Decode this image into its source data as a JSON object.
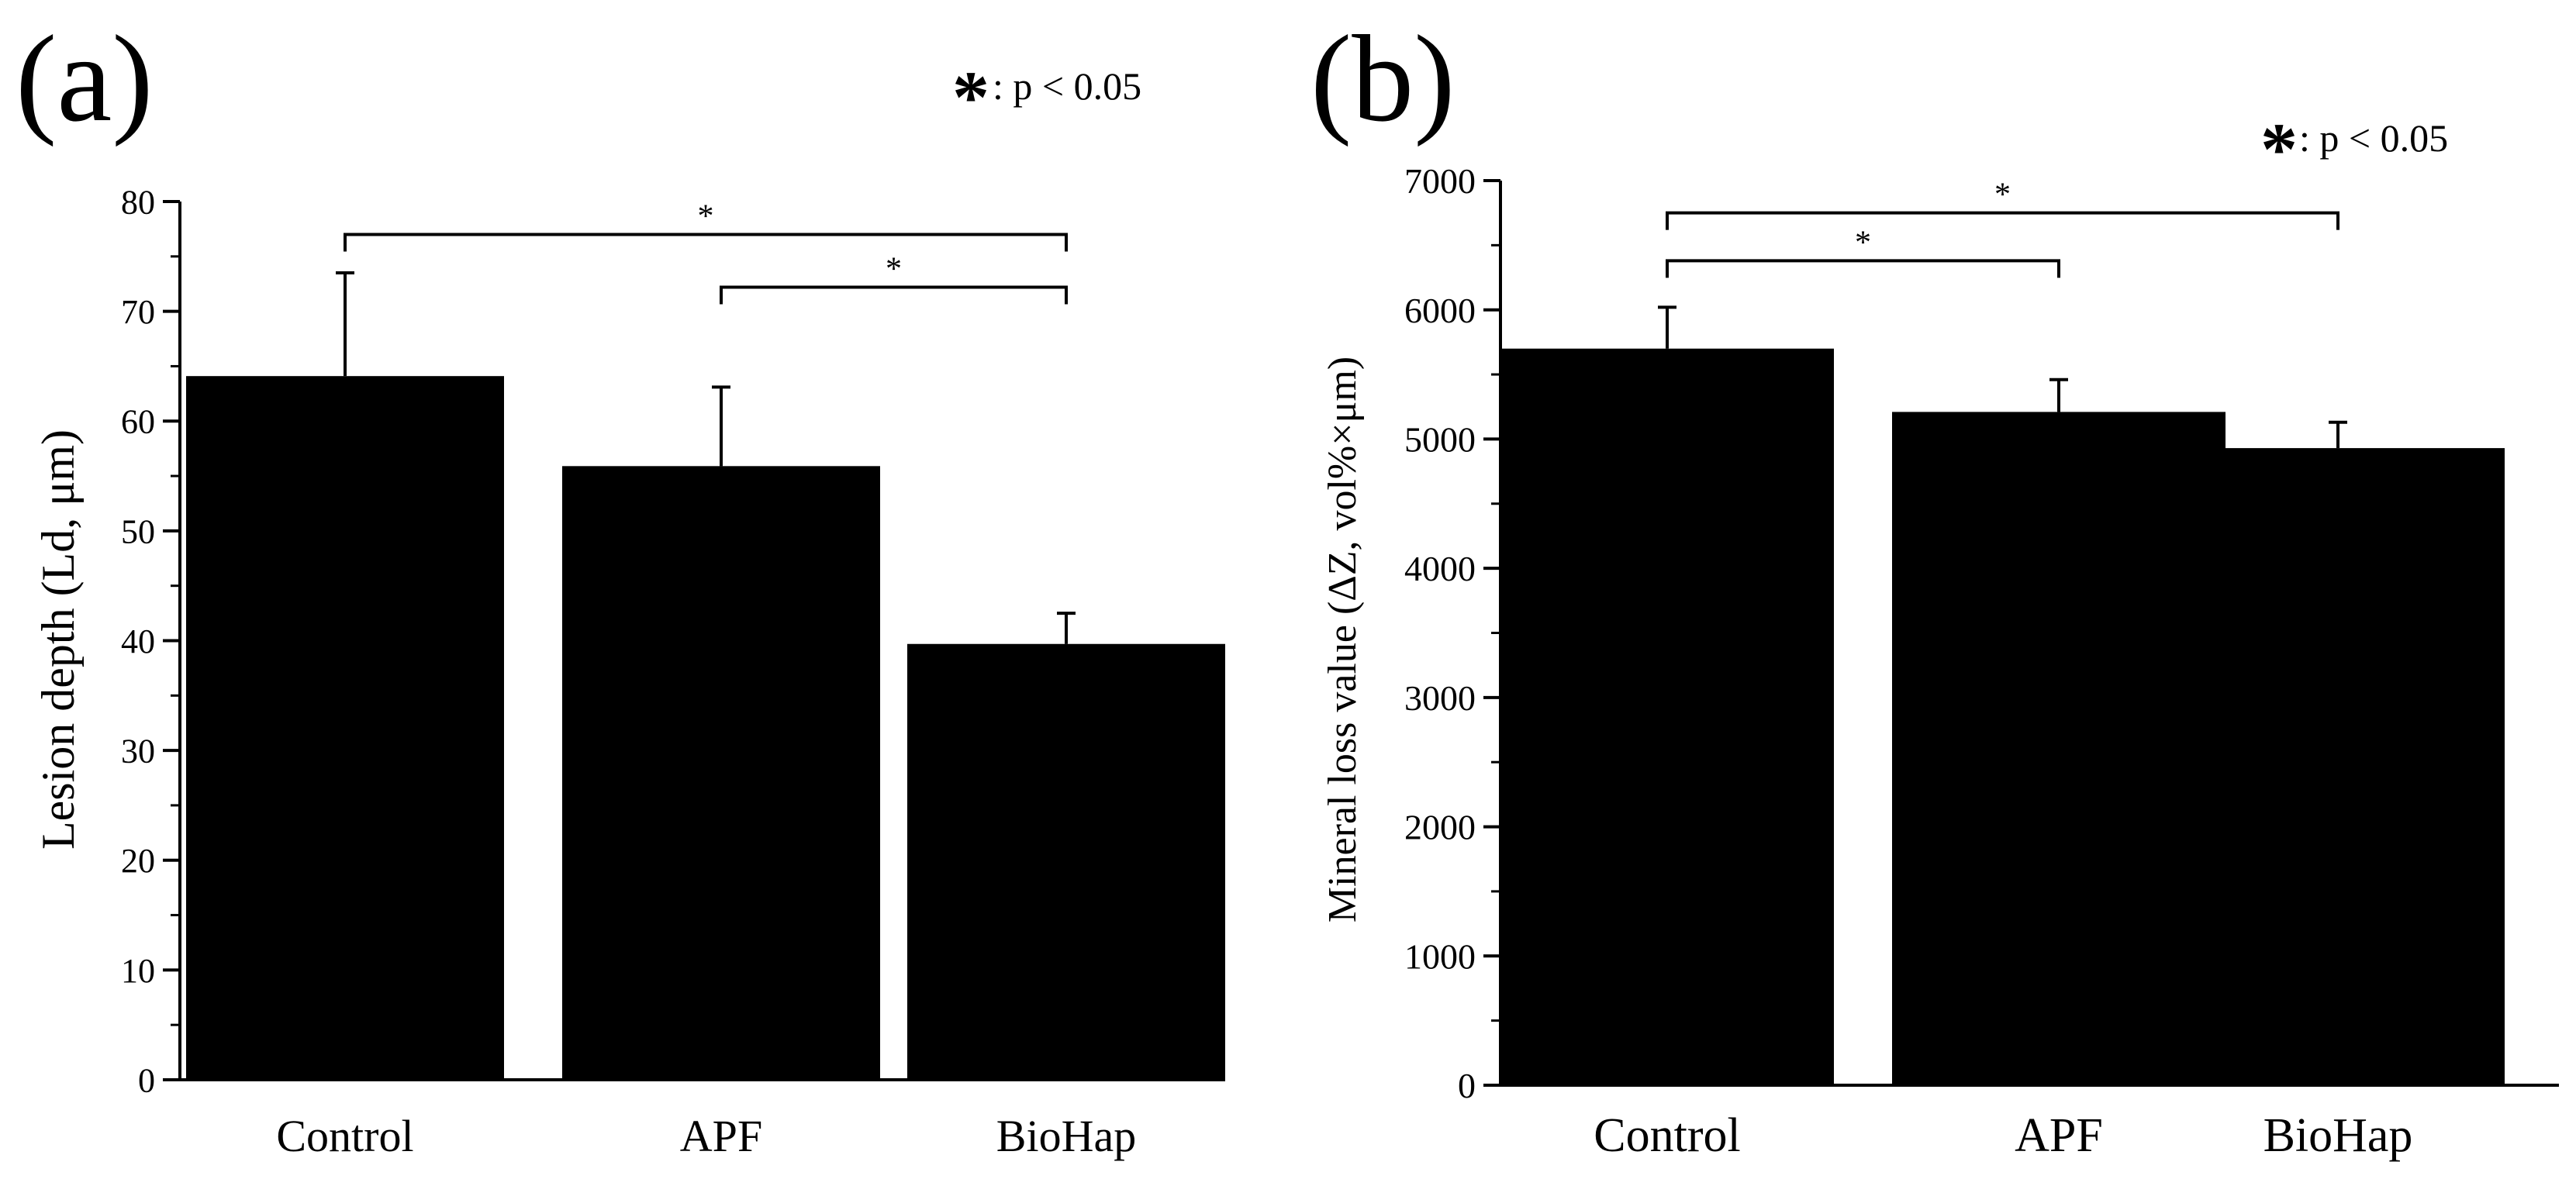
{
  "figure": {
    "panels": [
      "(a)",
      "(b)"
    ],
    "legend_symbol": "*",
    "legend_text": ": p < 0.05"
  },
  "chart_data": [
    {
      "type": "bar",
      "panel": "(a)",
      "categories": [
        "Control",
        "APF",
        "BioHap"
      ],
      "values": [
        64.1,
        55.9,
        39.7
      ],
      "errors": [
        9.4,
        7.2,
        2.8
      ],
      "ylabel": "Lesion depth (Ld, μm)",
      "xlabel": "",
      "ylim": [
        0,
        80
      ],
      "yticks": [
        0,
        10,
        20,
        30,
        40,
        50,
        60,
        70,
        80
      ],
      "ytick_labels": [
        "0",
        "10",
        "20",
        "30",
        "40",
        "50",
        "60",
        "70",
        "80"
      ],
      "minor_step": 5,
      "bar_color": "#000000",
      "significance": [
        {
          "from": 0,
          "to": 2,
          "label": "*",
          "level": 77.0
        },
        {
          "from": 1,
          "to": 2,
          "label": "*",
          "level": 72.2
        }
      ]
    },
    {
      "type": "bar",
      "panel": "(b)",
      "categories": [
        "Control",
        "APF",
        "BioHap"
      ],
      "values": [
        5700,
        5210,
        4930
      ],
      "errors": [
        320,
        250,
        200
      ],
      "ylabel": "Mineral loss value (ΔZ, vol%×μm)",
      "xlabel": "",
      "ylim": [
        0,
        7000
      ],
      "yticks": [
        0,
        1000,
        2000,
        3000,
        4000,
        5000,
        6000,
        7000
      ],
      "ytick_labels": [
        "0",
        "1000",
        "2000",
        "3000",
        "4000",
        "5000",
        "6000",
        "7000"
      ],
      "minor_step": 500,
      "bar_color": "#000000",
      "significance": [
        {
          "from": 0,
          "to": 2,
          "label": "*",
          "level": 6750
        },
        {
          "from": 0,
          "to": 1,
          "label": "*",
          "level": 6380
        }
      ]
    }
  ]
}
